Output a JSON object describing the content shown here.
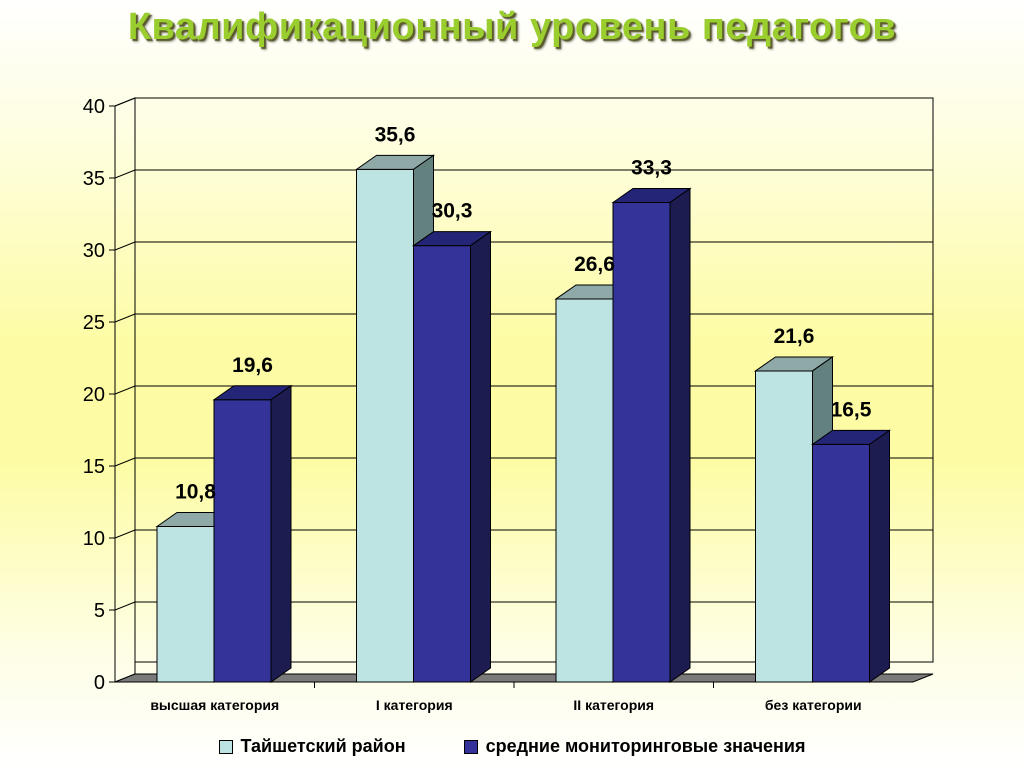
{
  "title": "Квалификационный уровень педагогов",
  "colors": {
    "series1_front": "#bde3e3",
    "series1_top": "#8fa8a8",
    "series1_side": "#62817f",
    "series2_front": "#333399",
    "series2_top": "#252577",
    "series2_side": "#1c1c50",
    "floor": "#7a7a7a"
  },
  "chart_data": {
    "type": "bar",
    "categories": [
      "высшая категория",
      "I категория",
      "II категория",
      "без категории"
    ],
    "series": [
      {
        "name": "Тайшетский район",
        "values": [
          10.8,
          35.6,
          26.6,
          21.6
        ],
        "labels": [
          "10,8",
          "35,6",
          "26,6",
          "21,6"
        ]
      },
      {
        "name": "средние мониторинговые значения",
        "values": [
          19.6,
          30.3,
          33.3,
          16.5
        ],
        "labels": [
          "19,6",
          "30,3",
          "33,3",
          "16,5"
        ]
      }
    ],
    "ylim": [
      0,
      40
    ],
    "yticks": [
      "0",
      "5",
      "10",
      "15",
      "20",
      "25",
      "30",
      "35",
      "40"
    ],
    "grid": true,
    "legend_position": "bottom",
    "style": "3d-column"
  }
}
